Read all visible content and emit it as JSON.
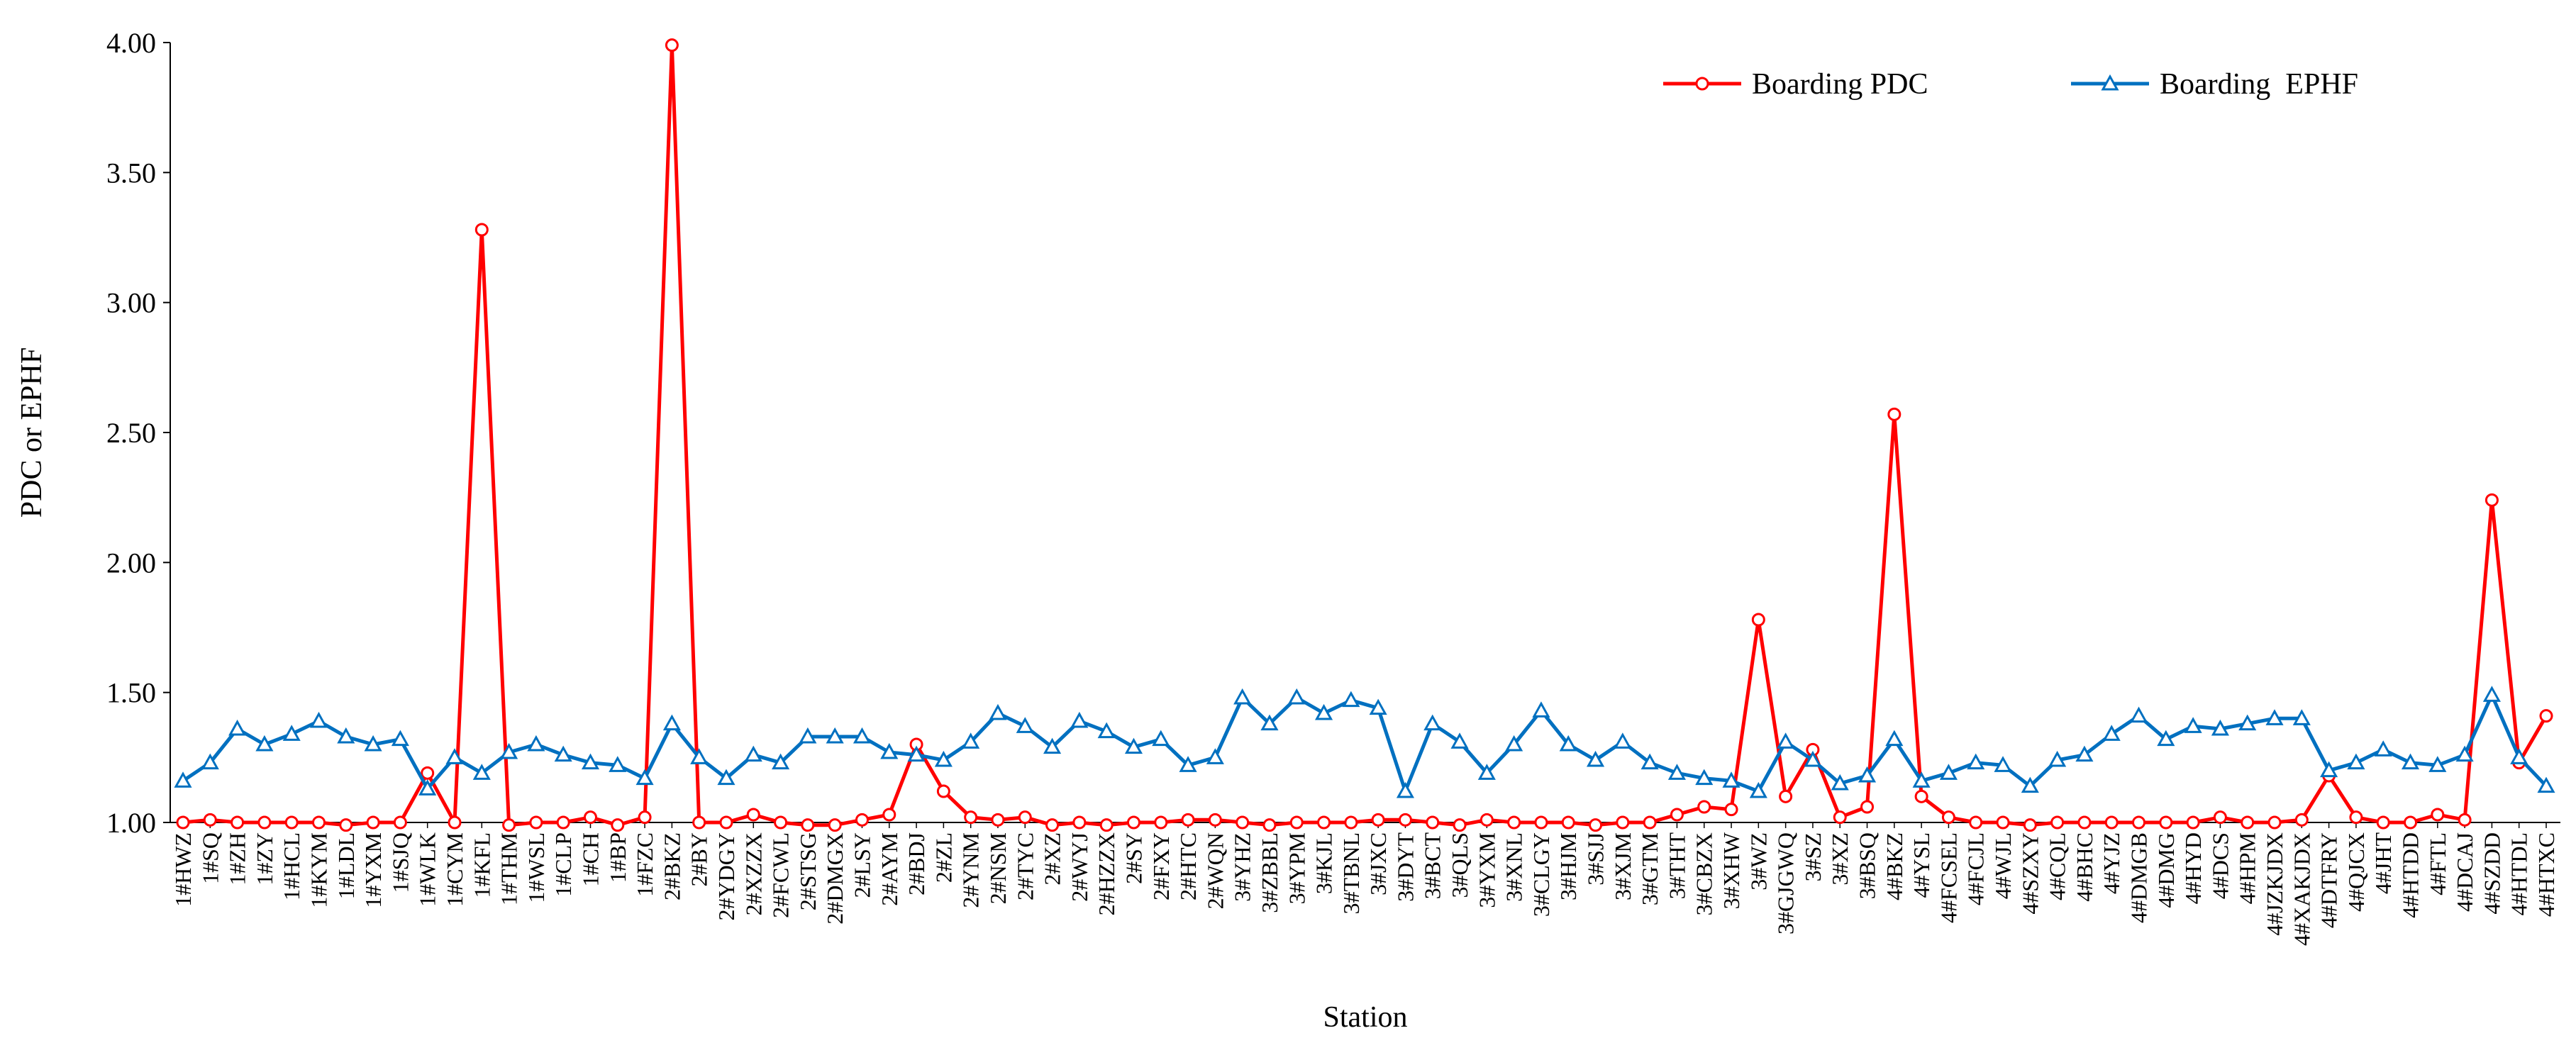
{
  "chart_data": {
    "type": "line",
    "xlabel": "Station",
    "ylabel": "PDC or EPHF",
    "ylim": [
      1.0,
      4.0
    ],
    "y_ticks": [
      "1.00",
      "1.50",
      "2.00",
      "2.50",
      "3.00",
      "3.50",
      "4.00"
    ],
    "grid": false,
    "legend_position": "top-right",
    "categories": [
      "1#HWZ",
      "1#SQ",
      "1#ZH",
      "1#ZY",
      "1#HCL",
      "1#KYM",
      "1#LDL",
      "1#YXM",
      "1#SJQ",
      "1#WLK",
      "1#CYM",
      "1#KFL",
      "1#THM",
      "1#WSL",
      "1#CLP",
      "1#CH",
      "1#BP",
      "1#FZC",
      "2#BKZ",
      "2#BY",
      "2#YDGY",
      "2#XZZX",
      "2#FCWL",
      "2#STSG",
      "2#DMGX",
      "2#LSY",
      "2#AYM",
      "2#BDJ",
      "2#ZL",
      "2#YNM",
      "2#NSM",
      "2#TYC",
      "2#XZ",
      "2#WYJ",
      "2#HZZX",
      "2#SY",
      "2#FXY",
      "2#HTC",
      "2#WQN",
      "3#YHZ",
      "3#ZBBL",
      "3#YPM",
      "3#KJL",
      "3#TBNL",
      "3#JXC",
      "3#DYT",
      "3#BCT",
      "3#QLS",
      "3#YXM",
      "3#XNL",
      "3#CLGY",
      "3#HJM",
      "3#SJJ",
      "3#XJM",
      "3#GTM",
      "3#THT",
      "3#CBZX",
      "3#XHW",
      "3#WZ",
      "3#GJGWQ",
      "3#SZ",
      "3#XZ",
      "3#BSQ",
      "4#BKZ",
      "4#YSL",
      "4#FCSEL",
      "4#FCJL",
      "4#WJL",
      "4#SZXY",
      "4#CQL",
      "4#BHC",
      "4#YJZ",
      "4#DMGB",
      "4#DMG",
      "4#HYD",
      "4#DCS",
      "4#HPM",
      "4#JZKJDX",
      "4#XAKJDX",
      "4#DTFRY",
      "4#QJCX",
      "4#JHT",
      "4#HTDD",
      "4#FTL",
      "4#DCAJ",
      "4#SZDD",
      "4#HTDL",
      "4#HTXC"
    ],
    "series": [
      {
        "name": "Boarding PDC",
        "color": "#ff0000",
        "marker": "circle",
        "values": [
          1.0,
          1.01,
          1.0,
          1.0,
          1.0,
          1.0,
          0.99,
          1.0,
          1.0,
          1.19,
          1.0,
          3.28,
          0.99,
          1.0,
          1.0,
          1.02,
          0.99,
          1.02,
          3.99,
          1.0,
          1.0,
          1.03,
          1.0,
          0.99,
          0.99,
          1.01,
          1.03,
          1.3,
          1.12,
          1.02,
          1.01,
          1.02,
          0.99,
          1.0,
          0.99,
          1.0,
          1.0,
          1.01,
          1.01,
          1.0,
          0.99,
          1.0,
          1.0,
          1.0,
          1.01,
          1.01,
          1.0,
          0.99,
          1.01,
          1.0,
          1.0,
          1.0,
          0.99,
          1.0,
          1.0,
          1.03,
          1.06,
          1.05,
          1.78,
          1.1,
          1.28,
          1.02,
          1.06,
          2.57,
          1.1,
          1.02,
          1.0,
          1.0,
          0.99,
          1.0,
          1.0,
          1.0,
          1.0,
          1.0,
          1.0,
          1.02,
          1.0,
          1.0,
          1.01,
          1.18,
          1.02,
          1.0,
          1.0,
          1.03,
          1.01,
          2.24,
          1.23,
          1.41
        ]
      },
      {
        "name": "Boarding  EPHF",
        "color": "#0070c0",
        "marker": "triangle",
        "values": [
          1.16,
          1.23,
          1.36,
          1.3,
          1.34,
          1.39,
          1.33,
          1.3,
          1.32,
          1.13,
          1.25,
          1.19,
          1.27,
          1.3,
          1.26,
          1.23,
          1.22,
          1.17,
          1.38,
          1.25,
          1.17,
          1.26,
          1.23,
          1.33,
          1.33,
          1.33,
          1.27,
          1.26,
          1.24,
          1.31,
          1.42,
          1.37,
          1.29,
          1.39,
          1.35,
          1.29,
          1.32,
          1.22,
          1.25,
          1.48,
          1.38,
          1.48,
          1.42,
          1.47,
          1.44,
          1.12,
          1.38,
          1.31,
          1.19,
          1.3,
          1.43,
          1.3,
          1.24,
          1.31,
          1.23,
          1.19,
          1.17,
          1.16,
          1.12,
          1.31,
          1.24,
          1.15,
          1.18,
          1.32,
          1.16,
          1.19,
          1.23,
          1.22,
          1.14,
          1.24,
          1.26,
          1.34,
          1.41,
          1.32,
          1.37,
          1.36,
          1.38,
          1.4,
          1.4,
          1.2,
          1.23,
          1.28,
          1.23,
          1.22,
          1.26,
          1.49,
          1.25,
          1.14
        ]
      }
    ]
  }
}
